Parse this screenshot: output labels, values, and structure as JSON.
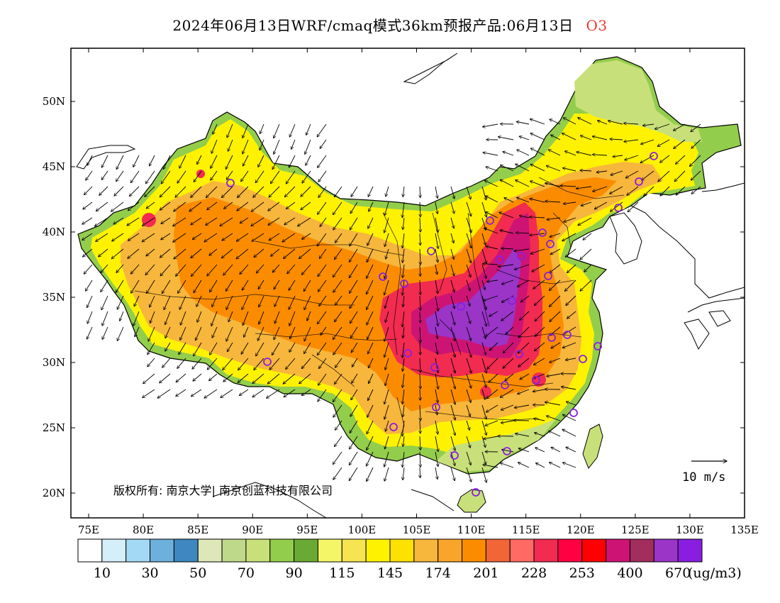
{
  "title": {
    "text": "2024年06月13日WRF/cmaq模式36km预报产品:06月13日",
    "species": "O3"
  },
  "axes": {
    "lon_ticks": [
      "75E",
      "80E",
      "85E",
      "90E",
      "95E",
      "100E",
      "105E",
      "110E",
      "115E",
      "120E",
      "125E",
      "130E",
      "135E"
    ],
    "lat_ticks": [
      "50N",
      "45N",
      "40N",
      "35N",
      "30N",
      "25N",
      "20N"
    ]
  },
  "copyright": "版权所有: 南京大学| 南京创蓝科技有限公司",
  "wind_reference": "10 m/s",
  "colorbar": {
    "colors": [
      "#ffffff",
      "#d4eefa",
      "#a3d9f4",
      "#6db0dc",
      "#3e87c0",
      "#dde7b8",
      "#bfd98a",
      "#c8e07a",
      "#93cd4c",
      "#6aa934",
      "#f4f667",
      "#f6e452",
      "#fff200",
      "#fde100",
      "#f7b63c",
      "#f9a42a",
      "#fb8c00",
      "#f26536",
      "#ff6a64",
      "#f22b51",
      "#ff0042",
      "#ff0000",
      "#cd1475",
      "#a12e5c",
      "#9a35c8",
      "#8a1ee0"
    ],
    "tick_labels": [
      "10",
      "30",
      "50",
      "70",
      "90",
      "115",
      "145",
      "174",
      "201",
      "228",
      "253",
      "400",
      "670"
    ],
    "unit": "(ug/m3)"
  },
  "map_colors": {
    "green": "#93cd4c",
    "lightgreen": "#c8e07a",
    "yellow": "#fff200",
    "lightorange": "#f7b63c",
    "orange": "#fb8c00",
    "red": "#f22b51",
    "magenta": "#cd1475",
    "purple": "#9a35c8",
    "station": "#8a1ee0"
  }
}
